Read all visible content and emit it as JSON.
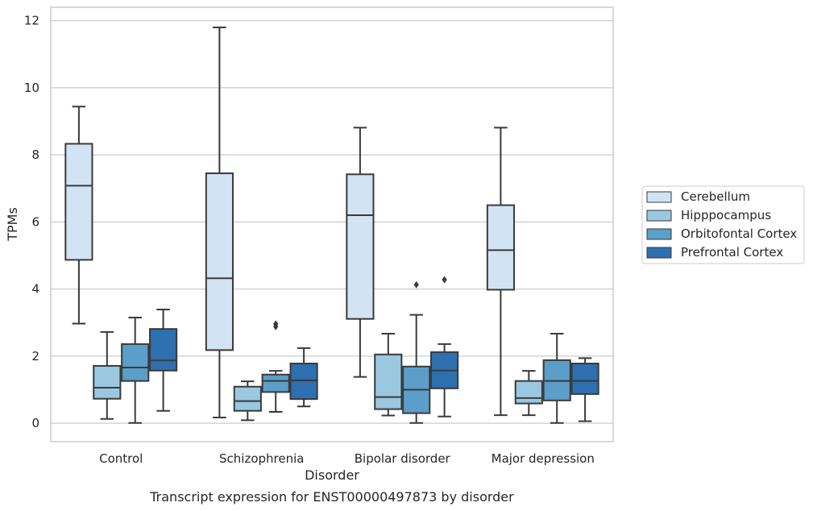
{
  "caption": "Transcript expression for ENST00000497873 by disorder",
  "chart_data": {
    "type": "box",
    "title": "",
    "xlabel": "Disorder",
    "ylabel": "TPMs",
    "ylim": [
      -0.55,
      12.4
    ],
    "yticks": [
      0,
      2,
      4,
      6,
      8,
      10,
      12
    ],
    "grid": "horizontal",
    "legend_position": "right",
    "categories": [
      "Control",
      "Schizophrenia",
      "Bipolar disorder",
      "Major depression"
    ],
    "series": [
      {
        "name": "Cerebellum",
        "color": "#d2e3f3",
        "boxes": [
          {
            "whislo": 2.97,
            "q1": 4.87,
            "med": 7.08,
            "q3": 8.33,
            "whishi": 9.44,
            "fliers": []
          },
          {
            "whislo": 0.17,
            "q1": 2.18,
            "med": 4.32,
            "q3": 7.45,
            "whishi": 11.8,
            "fliers": []
          },
          {
            "whislo": 1.38,
            "q1": 3.11,
            "med": 6.2,
            "q3": 7.42,
            "whishi": 8.81,
            "fliers": []
          },
          {
            "whislo": 0.24,
            "q1": 3.98,
            "med": 5.16,
            "q3": 6.5,
            "whishi": 8.81,
            "fliers": []
          }
        ]
      },
      {
        "name": "Hipppocampus",
        "color": "#9ac8e0",
        "boxes": [
          {
            "whislo": 0.13,
            "q1": 0.73,
            "med": 1.06,
            "q3": 1.71,
            "whishi": 2.72,
            "fliers": []
          },
          {
            "whislo": 0.09,
            "q1": 0.37,
            "med": 0.66,
            "q3": 1.09,
            "whishi": 1.25,
            "fliers": []
          },
          {
            "whislo": 0.23,
            "q1": 0.42,
            "med": 0.78,
            "q3": 2.05,
            "whishi": 2.67,
            "fliers": []
          },
          {
            "whislo": 0.24,
            "q1": 0.59,
            "med": 0.75,
            "q3": 1.26,
            "whishi": 1.56,
            "fliers": []
          }
        ]
      },
      {
        "name": "Orbitofontal Cortex",
        "color": "#5b9ec9",
        "boxes": [
          {
            "whislo": 0.01,
            "q1": 1.26,
            "med": 1.66,
            "q3": 2.36,
            "whishi": 3.15,
            "fliers": []
          },
          {
            "whislo": 0.34,
            "q1": 0.93,
            "med": 1.26,
            "q3": 1.45,
            "whishi": 1.56,
            "fliers": [
              2.88,
              2.96
            ]
          },
          {
            "whislo": 0.01,
            "q1": 0.3,
            "med": 1.0,
            "q3": 1.69,
            "whishi": 3.23,
            "fliers": [
              4.13
            ]
          },
          {
            "whislo": 0.01,
            "q1": 0.68,
            "med": 1.26,
            "q3": 1.88,
            "whishi": 2.67,
            "fliers": []
          }
        ]
      },
      {
        "name": "Prefrontal Cortex",
        "color": "#2e6fb0",
        "boxes": [
          {
            "whislo": 0.37,
            "q1": 1.57,
            "med": 1.87,
            "q3": 2.81,
            "whishi": 3.39,
            "fliers": []
          },
          {
            "whislo": 0.5,
            "q1": 0.72,
            "med": 1.28,
            "q3": 1.78,
            "whishi": 2.24,
            "fliers": []
          },
          {
            "whislo": 0.2,
            "q1": 1.04,
            "med": 1.57,
            "q3": 2.12,
            "whishi": 2.36,
            "fliers": [
              4.28
            ]
          },
          {
            "whislo": 0.06,
            "q1": 0.87,
            "med": 1.26,
            "q3": 1.78,
            "whishi": 1.94,
            "fliers": []
          }
        ]
      }
    ]
  }
}
